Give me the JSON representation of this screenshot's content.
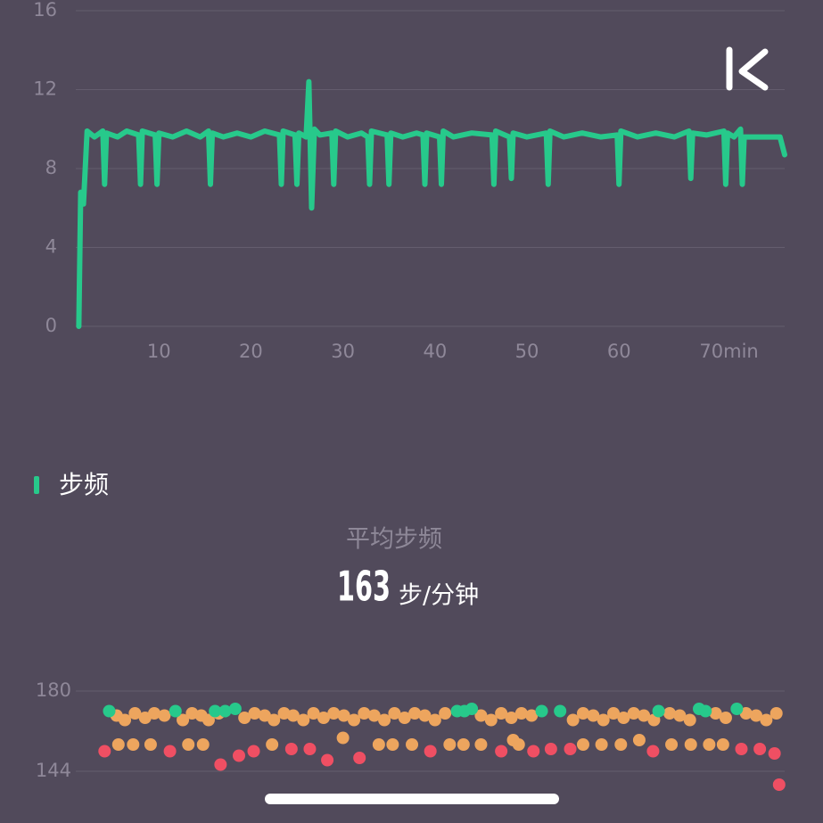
{
  "section": {
    "title": "步频",
    "stat_label": "平均步频",
    "stat_value": 163,
    "stat_unit": "步/分钟"
  },
  "chart_data": [
    {
      "type": "line",
      "color": "#27c98b",
      "x": [
        1.3,
        1.5,
        1.8,
        2.2,
        3.0,
        3.9,
        4.1,
        4.3,
        5.5,
        6.5,
        7.8,
        8.0,
        8.2,
        9.6,
        9.8,
        10.0,
        11.5,
        13.0,
        14.5,
        15.4,
        15.6,
        15.8,
        17.0,
        18.5,
        20.0,
        21.5,
        23.1,
        23.3,
        23.5,
        24.8,
        25.0,
        25.2,
        26.0,
        26.3,
        26.6,
        26.9,
        27.5,
        28.8,
        29.0,
        29.2,
        30.5,
        32.0,
        32.7,
        32.9,
        33.1,
        34.8,
        35.0,
        35.2,
        36.5,
        38.0,
        38.7,
        38.9,
        39.1,
        40.5,
        40.7,
        40.9,
        42.0,
        44.0,
        46.2,
        46.4,
        46.6,
        48.1,
        48.3,
        48.5,
        50.0,
        52.1,
        52.3,
        52.5,
        54.0,
        56.0,
        58.0,
        59.8,
        60.0,
        60.2,
        62.0,
        64.0,
        66.0,
        67.6,
        67.8,
        68.0,
        69.5,
        71.4,
        71.6,
        71.8,
        72.5,
        73.2,
        73.4,
        73.6,
        75.0,
        77.0,
        77.5,
        78.0
      ],
      "values": [
        0,
        6.8,
        6.2,
        9.9,
        9.6,
        9.9,
        7.2,
        9.8,
        9.6,
        9.9,
        9.7,
        7.2,
        9.9,
        9.7,
        7.2,
        9.8,
        9.6,
        9.9,
        9.6,
        9.9,
        7.2,
        9.8,
        9.6,
        9.8,
        9.6,
        9.9,
        9.7,
        7.2,
        9.9,
        9.7,
        7.2,
        9.8,
        9.6,
        12.4,
        6.0,
        10.0,
        9.7,
        9.8,
        7.2,
        9.9,
        9.6,
        9.8,
        9.6,
        7.2,
        9.9,
        9.7,
        7.2,
        9.8,
        9.6,
        9.8,
        9.7,
        7.2,
        9.8,
        9.6,
        7.2,
        9.9,
        9.6,
        9.8,
        9.7,
        7.2,
        9.9,
        9.6,
        7.5,
        9.8,
        9.6,
        9.8,
        7.2,
        9.9,
        9.6,
        9.8,
        9.6,
        9.7,
        7.2,
        9.9,
        9.6,
        9.8,
        9.6,
        9.9,
        7.5,
        9.8,
        9.7,
        9.9,
        7.2,
        9.8,
        9.6,
        10.0,
        7.2,
        9.6,
        9.6,
        9.6,
        9.6,
        8.7
      ],
      "xlim": [
        0,
        78
      ],
      "ylim": [
        0,
        16
      ],
      "xticks": [
        10,
        20,
        30,
        40,
        50,
        60,
        {
          "value": 70,
          "label": "70min"
        }
      ],
      "yticks": [
        0,
        4,
        8,
        12,
        16
      ],
      "grid": true
    },
    {
      "type": "scatter",
      "xlim": [
        0,
        78
      ],
      "ylim": [
        136,
        188
      ],
      "yticks": [
        144,
        180
      ],
      "grid": true,
      "series": [
        {
          "color": "#eda55e",
          "x": [
            5.4,
            6.3,
            7.4,
            8.5,
            9.5,
            10.6,
            12.6,
            13.6,
            14.6,
            15.4,
            16.5,
            19.3,
            20.4,
            21.5,
            22.5,
            23.6,
            24.6,
            25.7,
            26.8,
            27.9,
            29.0,
            30.1,
            31.2,
            32.3,
            33.4,
            34.5,
            35.6,
            36.7,
            37.8,
            38.9,
            40.0,
            41.1,
            45.0,
            46.1,
            47.2,
            48.3,
            49.4,
            50.5,
            55.0,
            56.1,
            57.2,
            58.3,
            59.4,
            60.5,
            61.6,
            62.7,
            63.8,
            65.5,
            66.6,
            67.7,
            70.5,
            71.6,
            73.8,
            74.9,
            76.0,
            77.1
          ],
          "values": [
            169,
            167,
            170,
            168,
            170,
            169,
            167,
            170,
            169,
            167,
            170,
            168,
            170,
            169,
            167,
            170,
            169,
            167,
            170,
            168,
            170,
            169,
            167,
            170,
            169,
            167,
            170,
            168,
            170,
            169,
            167,
            170,
            169,
            167,
            170,
            168,
            170,
            169,
            167,
            170,
            169,
            167,
            170,
            168,
            170,
            169,
            167,
            170,
            169,
            167,
            170,
            168,
            170,
            169,
            167,
            170
          ]
        },
        {
          "color": "#eda55e",
          "x": [
            5.6,
            7.2,
            9.1,
            13.2,
            14.8,
            22.3,
            30.0,
            33.9,
            35.4,
            37.5,
            41.6,
            43.1,
            45.0,
            48.5,
            49.1,
            56.1,
            58.1,
            60.2,
            62.2,
            65.7,
            67.8,
            69.8,
            71.3
          ],
          "values": [
            156,
            156,
            156,
            156,
            156,
            156,
            159,
            156,
            156,
            156,
            156,
            156,
            156,
            158,
            156,
            156,
            156,
            156,
            158,
            156,
            156,
            156,
            156
          ]
        },
        {
          "color": "#ef4f63",
          "x": [
            4.1,
            11.2,
            16.7,
            18.7,
            20.3,
            24.4,
            26.4,
            28.3,
            31.8,
            39.5,
            47.2,
            50.7,
            52.6,
            54.7,
            63.7,
            73.3,
            75.3,
            76.9,
            77.4
          ],
          "values": [
            153,
            153,
            147,
            151,
            153,
            154,
            154,
            149,
            150,
            153,
            153,
            153,
            154,
            154,
            153,
            154,
            154,
            152,
            138
          ]
        },
        {
          "color": "#27c98b",
          "x": [
            4.6,
            11.8,
            16.1,
            17.2,
            18.3,
            42.4,
            43.2,
            44.0,
            51.6,
            53.6,
            64.3,
            68.7,
            69.4,
            72.8
          ],
          "values": [
            171,
            171,
            171,
            171,
            172,
            171,
            171,
            172,
            171,
            171,
            171,
            172,
            171,
            172
          ]
        }
      ]
    }
  ]
}
